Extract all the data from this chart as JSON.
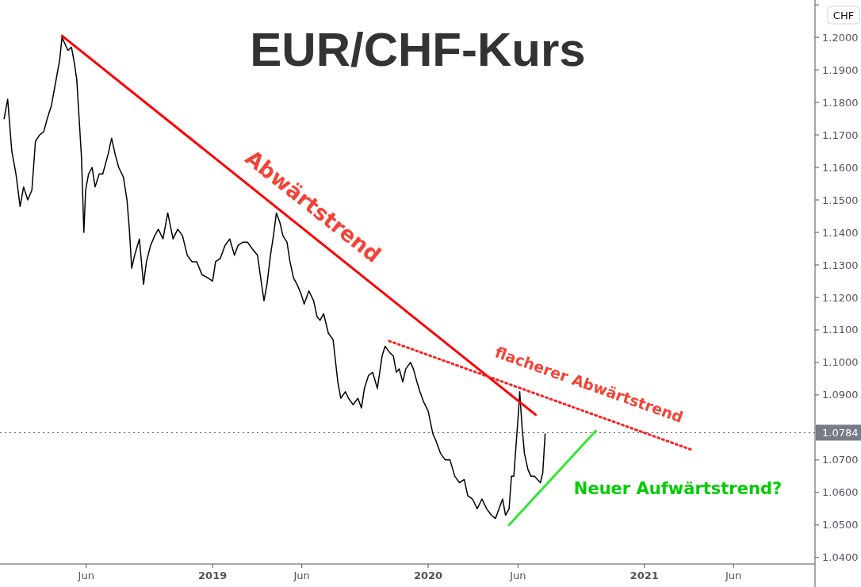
{
  "chart_data": {
    "type": "line",
    "title": "EUR/CHF-Kurs",
    "ylabel": "CHF",
    "xlim": [
      "2018-01-06",
      "2021-10-17"
    ],
    "xticks": [
      {
        "value": "2018-06-01",
        "label": "Jun"
      },
      {
        "value": "2019-01-01",
        "label": "2019"
      },
      {
        "value": "2019-06-01",
        "label": "Jun"
      },
      {
        "value": "2020-01-01",
        "label": "2020"
      },
      {
        "value": "2020-06-01",
        "label": "Jun"
      },
      {
        "value": "2021-01-01",
        "label": "2021"
      },
      {
        "value": "2021-06-01",
        "label": "Jun"
      }
    ],
    "ylim": [
      1.038,
      1.2115
    ],
    "yticks": [
      {
        "value": 1.04,
        "label": "1.0400"
      },
      {
        "value": 1.05,
        "label": "1.0500"
      },
      {
        "value": 1.06,
        "label": "1.0600"
      },
      {
        "value": 1.07,
        "label": "1.0700"
      },
      {
        "value": 1.08,
        "label": null
      },
      {
        "value": 1.09,
        "label": "1.0900"
      },
      {
        "value": 1.1,
        "label": "1.1000"
      },
      {
        "value": 1.11,
        "label": "1.1100"
      },
      {
        "value": 1.12,
        "label": "1.1200"
      },
      {
        "value": 1.13,
        "label": "1.1300"
      },
      {
        "value": 1.14,
        "label": "1.1400"
      },
      {
        "value": 1.15,
        "label": "1.1500"
      },
      {
        "value": 1.16,
        "label": "1.1600"
      },
      {
        "value": 1.17,
        "label": "1.1700"
      },
      {
        "value": 1.18,
        "label": "1.1800"
      },
      {
        "value": 1.19,
        "label": "1.1900"
      },
      {
        "value": 1.2,
        "label": "1.2000"
      },
      {
        "value": 1.21,
        "label": null
      }
    ],
    "grid": false,
    "series": [
      {
        "color": "#000000",
        "x": [
          "2018-01-13",
          "2018-01-19",
          "2018-01-26",
          "2018-02-02",
          "2018-02-09",
          "2018-02-15",
          "2018-02-22",
          "2018-03-01",
          "2018-03-07",
          "2018-03-14",
          "2018-03-21",
          "2018-03-27",
          "2018-04-03",
          "2018-04-10",
          "2018-04-17",
          "2018-04-21",
          "2018-04-26",
          "2018-05-01",
          "2018-05-07",
          "2018-05-12",
          "2018-05-16",
          "2018-05-20",
          "2018-05-24",
          "2018-05-28",
          "2018-05-31",
          "2018-06-05",
          "2018-06-11",
          "2018-06-16",
          "2018-06-23",
          "2018-06-29",
          "2018-07-08",
          "2018-07-14",
          "2018-07-20",
          "2018-07-26",
          "2018-08-03",
          "2018-08-09",
          "2018-08-13",
          "2018-08-17",
          "2018-08-22",
          "2018-08-30",
          "2018-09-06",
          "2018-09-11",
          "2018-09-18",
          "2018-09-25",
          "2018-10-01",
          "2018-10-09",
          "2018-10-17",
          "2018-10-26",
          "2018-11-03",
          "2018-11-11",
          "2018-11-19",
          "2018-11-27",
          "2018-12-05",
          "2018-12-14",
          "2018-12-24",
          "2019-01-01",
          "2019-01-06",
          "2019-01-14",
          "2019-01-22",
          "2019-01-30",
          "2019-02-07",
          "2019-02-13",
          "2019-02-21",
          "2019-03-01",
          "2019-03-09",
          "2019-03-18",
          "2019-03-25",
          "2019-03-29",
          "2019-04-03",
          "2019-04-09",
          "2019-04-14",
          "2019-04-19",
          "2019-04-25",
          "2019-04-30",
          "2019-05-07",
          "2019-05-12",
          "2019-05-18",
          "2019-05-24",
          "2019-05-31",
          "2019-06-05",
          "2019-06-13",
          "2019-06-21",
          "2019-06-27",
          "2019-07-02",
          "2019-07-08",
          "2019-07-16",
          "2019-07-24",
          "2019-08-01",
          "2019-08-06",
          "2019-08-14",
          "2019-08-19",
          "2019-08-27",
          "2019-09-04",
          "2019-09-10",
          "2019-09-15",
          "2019-09-22",
          "2019-09-29",
          "2019-10-07",
          "2019-10-15",
          "2019-10-20",
          "2019-10-28",
          "2019-11-03",
          "2019-11-08",
          "2019-11-13",
          "2019-11-19",
          "2019-11-24",
          "2019-12-02",
          "2019-12-07",
          "2019-12-13",
          "2019-12-18",
          "2019-12-24",
          "2020-01-01",
          "2020-01-09",
          "2020-01-14",
          "2020-01-22",
          "2020-01-30",
          "2020-02-07",
          "2020-02-15",
          "2020-02-23",
          "2020-03-02",
          "2020-03-08",
          "2020-03-16",
          "2020-03-24",
          "2020-04-01",
          "2020-04-09",
          "2020-04-17",
          "2020-04-24",
          "2020-04-30",
          "2020-05-06",
          "2020-05-11",
          "2020-05-17",
          "2020-05-21",
          "2020-05-25",
          "2020-05-29",
          "2020-06-02",
          "2020-06-04",
          "2020-06-08",
          "2020-06-12",
          "2020-06-18",
          "2020-06-23",
          "2020-06-29",
          "2020-07-04",
          "2020-07-09",
          "2020-07-13",
          "2020-07-17"
        ],
        "values": [
          1.175,
          1.181,
          1.165,
          1.158,
          1.148,
          1.154,
          1.15,
          1.153,
          1.168,
          1.17,
          1.171,
          1.175,
          1.179,
          1.186,
          1.193,
          1.2,
          1.198,
          1.196,
          1.197,
          1.192,
          1.187,
          1.175,
          1.163,
          1.14,
          1.153,
          1.158,
          1.16,
          1.154,
          1.158,
          1.158,
          1.164,
          1.169,
          1.164,
          1.16,
          1.157,
          1.15,
          1.141,
          1.129,
          1.133,
          1.138,
          1.124,
          1.131,
          1.136,
          1.139,
          1.141,
          1.138,
          1.146,
          1.138,
          1.141,
          1.139,
          1.133,
          1.131,
          1.131,
          1.127,
          1.126,
          1.125,
          1.131,
          1.132,
          1.136,
          1.138,
          1.133,
          1.136,
          1.137,
          1.137,
          1.135,
          1.133,
          1.124,
          1.119,
          1.124,
          1.133,
          1.139,
          1.146,
          1.143,
          1.139,
          1.137,
          1.131,
          1.126,
          1.124,
          1.121,
          1.118,
          1.122,
          1.119,
          1.114,
          1.113,
          1.115,
          1.109,
          1.107,
          1.094,
          1.089,
          1.091,
          1.089,
          1.087,
          1.089,
          1.086,
          1.092,
          1.096,
          1.097,
          1.092,
          1.102,
          1.105,
          1.103,
          1.102,
          1.097,
          1.098,
          1.094,
          1.098,
          1.1,
          1.098,
          1.094,
          1.091,
          1.088,
          1.085,
          1.078,
          1.076,
          1.072,
          1.07,
          1.07,
          1.065,
          1.063,
          1.064,
          1.059,
          1.058,
          1.055,
          1.058,
          1.055,
          1.053,
          1.052,
          1.055,
          1.058,
          1.053,
          1.055,
          1.065,
          1.065,
          1.075,
          1.085,
          1.091,
          1.08,
          1.072,
          1.067,
          1.065,
          1.065,
          1.064,
          1.063,
          1.066,
          1.078
        ]
      },
      {
        "type": "line",
        "color": "#ff0000",
        "x": [
          "2018-04-21",
          "2020-07-01"
        ],
        "values": [
          1.2005,
          1.0839
        ]
      },
      {
        "type": "line",
        "color": "#ff2020",
        "line_style": "dotted",
        "x": [
          "2019-10-27",
          "2021-03-21"
        ],
        "values": [
          1.1066,
          1.0732
        ]
      },
      {
        "type": "line",
        "color": "#33e633",
        "x": [
          "2020-05-17",
          "2020-10-11"
        ],
        "values": [
          1.05,
          1.079
        ]
      }
    ],
    "ref_lines": [
      {
        "axis": "y",
        "value": 1.0784,
        "label": "1.0784",
        "color": "#555555",
        "line_style": "dotted"
      }
    ],
    "annotations": [
      "Abwärtstrend",
      "flacherer Abwärtstrend",
      "Neuer Aufwärtstrend?"
    ]
  }
}
